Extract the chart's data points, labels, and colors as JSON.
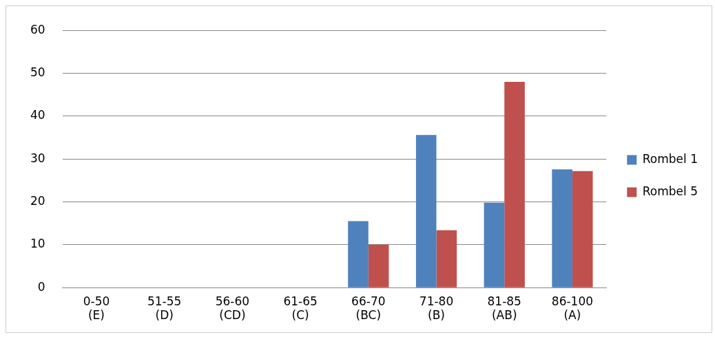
{
  "chart_data": {
    "type": "bar",
    "categories": [
      "0-50 (E)",
      "51-55 (D)",
      "56-60 (CD)",
      "61-65 (C)",
      "66-70 (BC)",
      "71-80 (B)",
      "81-85 (AB)",
      "86-100 (A)"
    ],
    "series": [
      {
        "name": "Rombel 1",
        "color": "#4f81bd",
        "values": [
          0,
          0,
          0,
          0,
          15.5,
          35.6,
          19.8,
          27.6
        ]
      },
      {
        "name": "Rombel 5",
        "color": "#c0504d",
        "values": [
          0,
          0,
          0,
          0,
          10.0,
          13.4,
          48.0,
          27.2
        ]
      }
    ],
    "ylim": [
      0,
      60
    ],
    "yticks": [
      0,
      10,
      20,
      30,
      40,
      50,
      60
    ],
    "grid": "y",
    "legend": "right"
  }
}
